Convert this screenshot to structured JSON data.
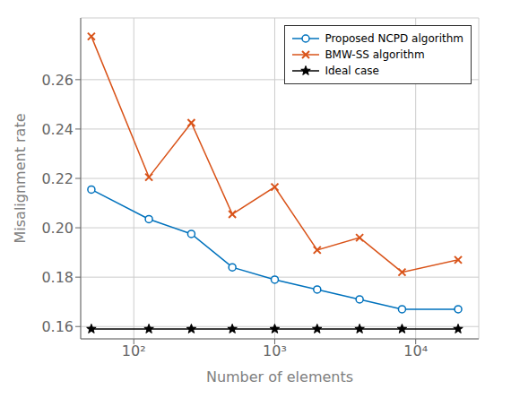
{
  "chart_data": {
    "type": "line",
    "x": [
      50,
      128,
      256,
      500,
      1000,
      2000,
      4000,
      8000,
      20000
    ],
    "series": [
      {
        "name": "Proposed NCPD algorithm",
        "color": "#0072BD",
        "marker": "circle",
        "values": [
          0.2155,
          0.2035,
          0.1975,
          0.184,
          0.179,
          0.175,
          0.171,
          0.167,
          0.167
        ]
      },
      {
        "name": "BMW-SS algorithm",
        "color": "#D95319",
        "marker": "x",
        "values": [
          0.2775,
          0.2205,
          0.2425,
          0.2055,
          0.2165,
          0.191,
          0.196,
          0.182,
          0.187
        ]
      },
      {
        "name": "Ideal case",
        "color": "#000000",
        "marker": "star",
        "values": [
          0.159,
          0.159,
          0.159,
          0.159,
          0.159,
          0.159,
          0.159,
          0.159,
          0.159
        ]
      }
    ],
    "xlabel": "Number of elements",
    "ylabel": "Misalignment rate",
    "log": "x",
    "xlim": [
      42,
      28000
    ],
    "xticks": [
      {
        "value": 100,
        "label": "10²"
      },
      {
        "value": 1000,
        "label": "10³"
      },
      {
        "value": 10000,
        "label": "10⁴"
      }
    ],
    "ylim": [
      0.155,
      0.285
    ],
    "yticks": [
      0.16,
      0.18,
      {
        "value": 0.2,
        "label": "0.20"
      },
      0.22,
      0.24,
      0.26
    ],
    "grid": true,
    "legend": "upper right"
  }
}
